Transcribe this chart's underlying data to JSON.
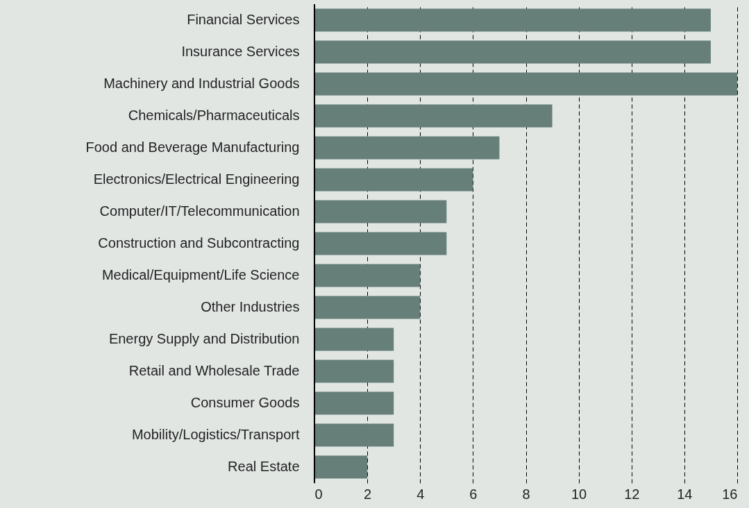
{
  "chart_data": {
    "type": "bar",
    "orientation": "horizontal",
    "categories": [
      "Financial Services",
      "Insurance Services",
      "Machinery and Industrial Goods",
      "Chemicals/Pharmaceuticals",
      "Food and Beverage Manufacturing",
      "Electronics/Electrical Engineering",
      "Computer/IT/Telecommunication",
      "Construction and Subcontracting",
      "Medical/Equipment/Life Science",
      "Other Industries",
      "Energy Supply and Distribution",
      "Retail and Wholesale Trade",
      "Consumer Goods",
      "Mobility/Logistics/Transport",
      "Real Estate"
    ],
    "values": [
      15,
      15,
      16,
      9,
      7,
      6,
      5,
      5,
      4,
      4,
      3,
      3,
      3,
      3,
      2
    ],
    "color": "#667f79",
    "xlim": [
      0,
      16
    ],
    "xticks": [
      0,
      2,
      4,
      6,
      8,
      10,
      12,
      14,
      16
    ],
    "grid": "x"
  }
}
